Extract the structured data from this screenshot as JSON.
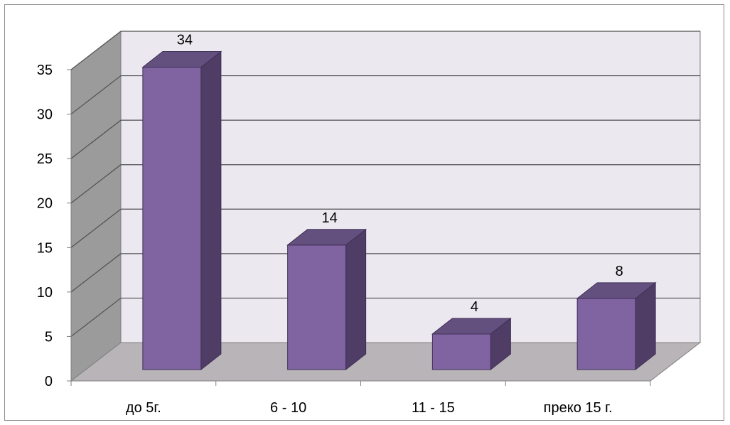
{
  "chart_data": {
    "type": "bar",
    "categories": [
      "до 5г.",
      "6 - 10",
      "11 - 15",
      "преко 15 г."
    ],
    "values": [
      34,
      14,
      4,
      8
    ],
    "data_labels": [
      "34",
      "14",
      "4",
      "8"
    ],
    "title": "",
    "xlabel": "",
    "ylabel": "",
    "ylim": [
      0,
      35
    ],
    "yticks": [
      0,
      5,
      10,
      15,
      20,
      25,
      30,
      35
    ],
    "ytick_labels": [
      "0",
      "5",
      "10",
      "15",
      "20",
      "25",
      "30",
      "35"
    ],
    "grid": true,
    "legend": "none",
    "colors": {
      "bar_front": "#8064a2",
      "bar_side": "#4f3d66",
      "bar_top": "#64507f",
      "bar_edge": "#3f2f55",
      "back_wall": "#ebe8f0",
      "side_wall": "#9b9b9b",
      "floor": "#b8b4b8",
      "gridline": "#505050",
      "axis": "#7f7f7f"
    }
  }
}
